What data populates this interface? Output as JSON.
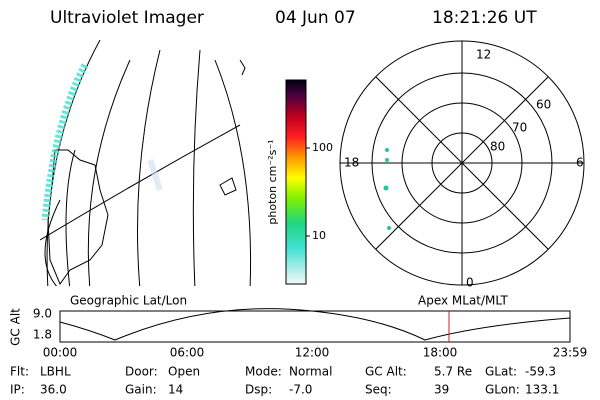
{
  "header": {
    "title": "Ultraviolet Imager",
    "date": "04 Jun 07",
    "time": "18:21:26 UT"
  },
  "colorbar": {
    "label": "photon cm⁻²s⁻¹",
    "ticks": [
      "100",
      "10"
    ]
  },
  "polar": {
    "mlt_labels": [
      "12",
      "18",
      "6",
      "0"
    ],
    "lat_labels": [
      "60",
      "70",
      "80"
    ]
  },
  "timeline": {
    "left_title": "Geographic Lat/Lon",
    "right_title": "Apex MLat/MLT",
    "y_label": "GC Alt",
    "y_ticks": [
      "9.0",
      "1.8"
    ],
    "x_ticks": [
      "00:00",
      "06:00",
      "12:00",
      "18:00",
      "23:59"
    ]
  },
  "footer": {
    "rows": [
      [
        [
          "Flt:",
          "LBHL"
        ],
        [
          "Door:",
          "Open"
        ],
        [
          "Mode:",
          "Normal"
        ],
        [
          "GC Alt:",
          "5.7 Re"
        ],
        [
          "GLat:",
          "-59.3"
        ]
      ],
      [
        [
          "IP:",
          "36.0"
        ],
        [
          "Gain:",
          "14"
        ],
        [
          "Dsp:",
          "-7.0"
        ],
        [
          "Seq:",
          "39"
        ],
        [
          "GLon:",
          "133.1"
        ]
      ]
    ]
  }
}
